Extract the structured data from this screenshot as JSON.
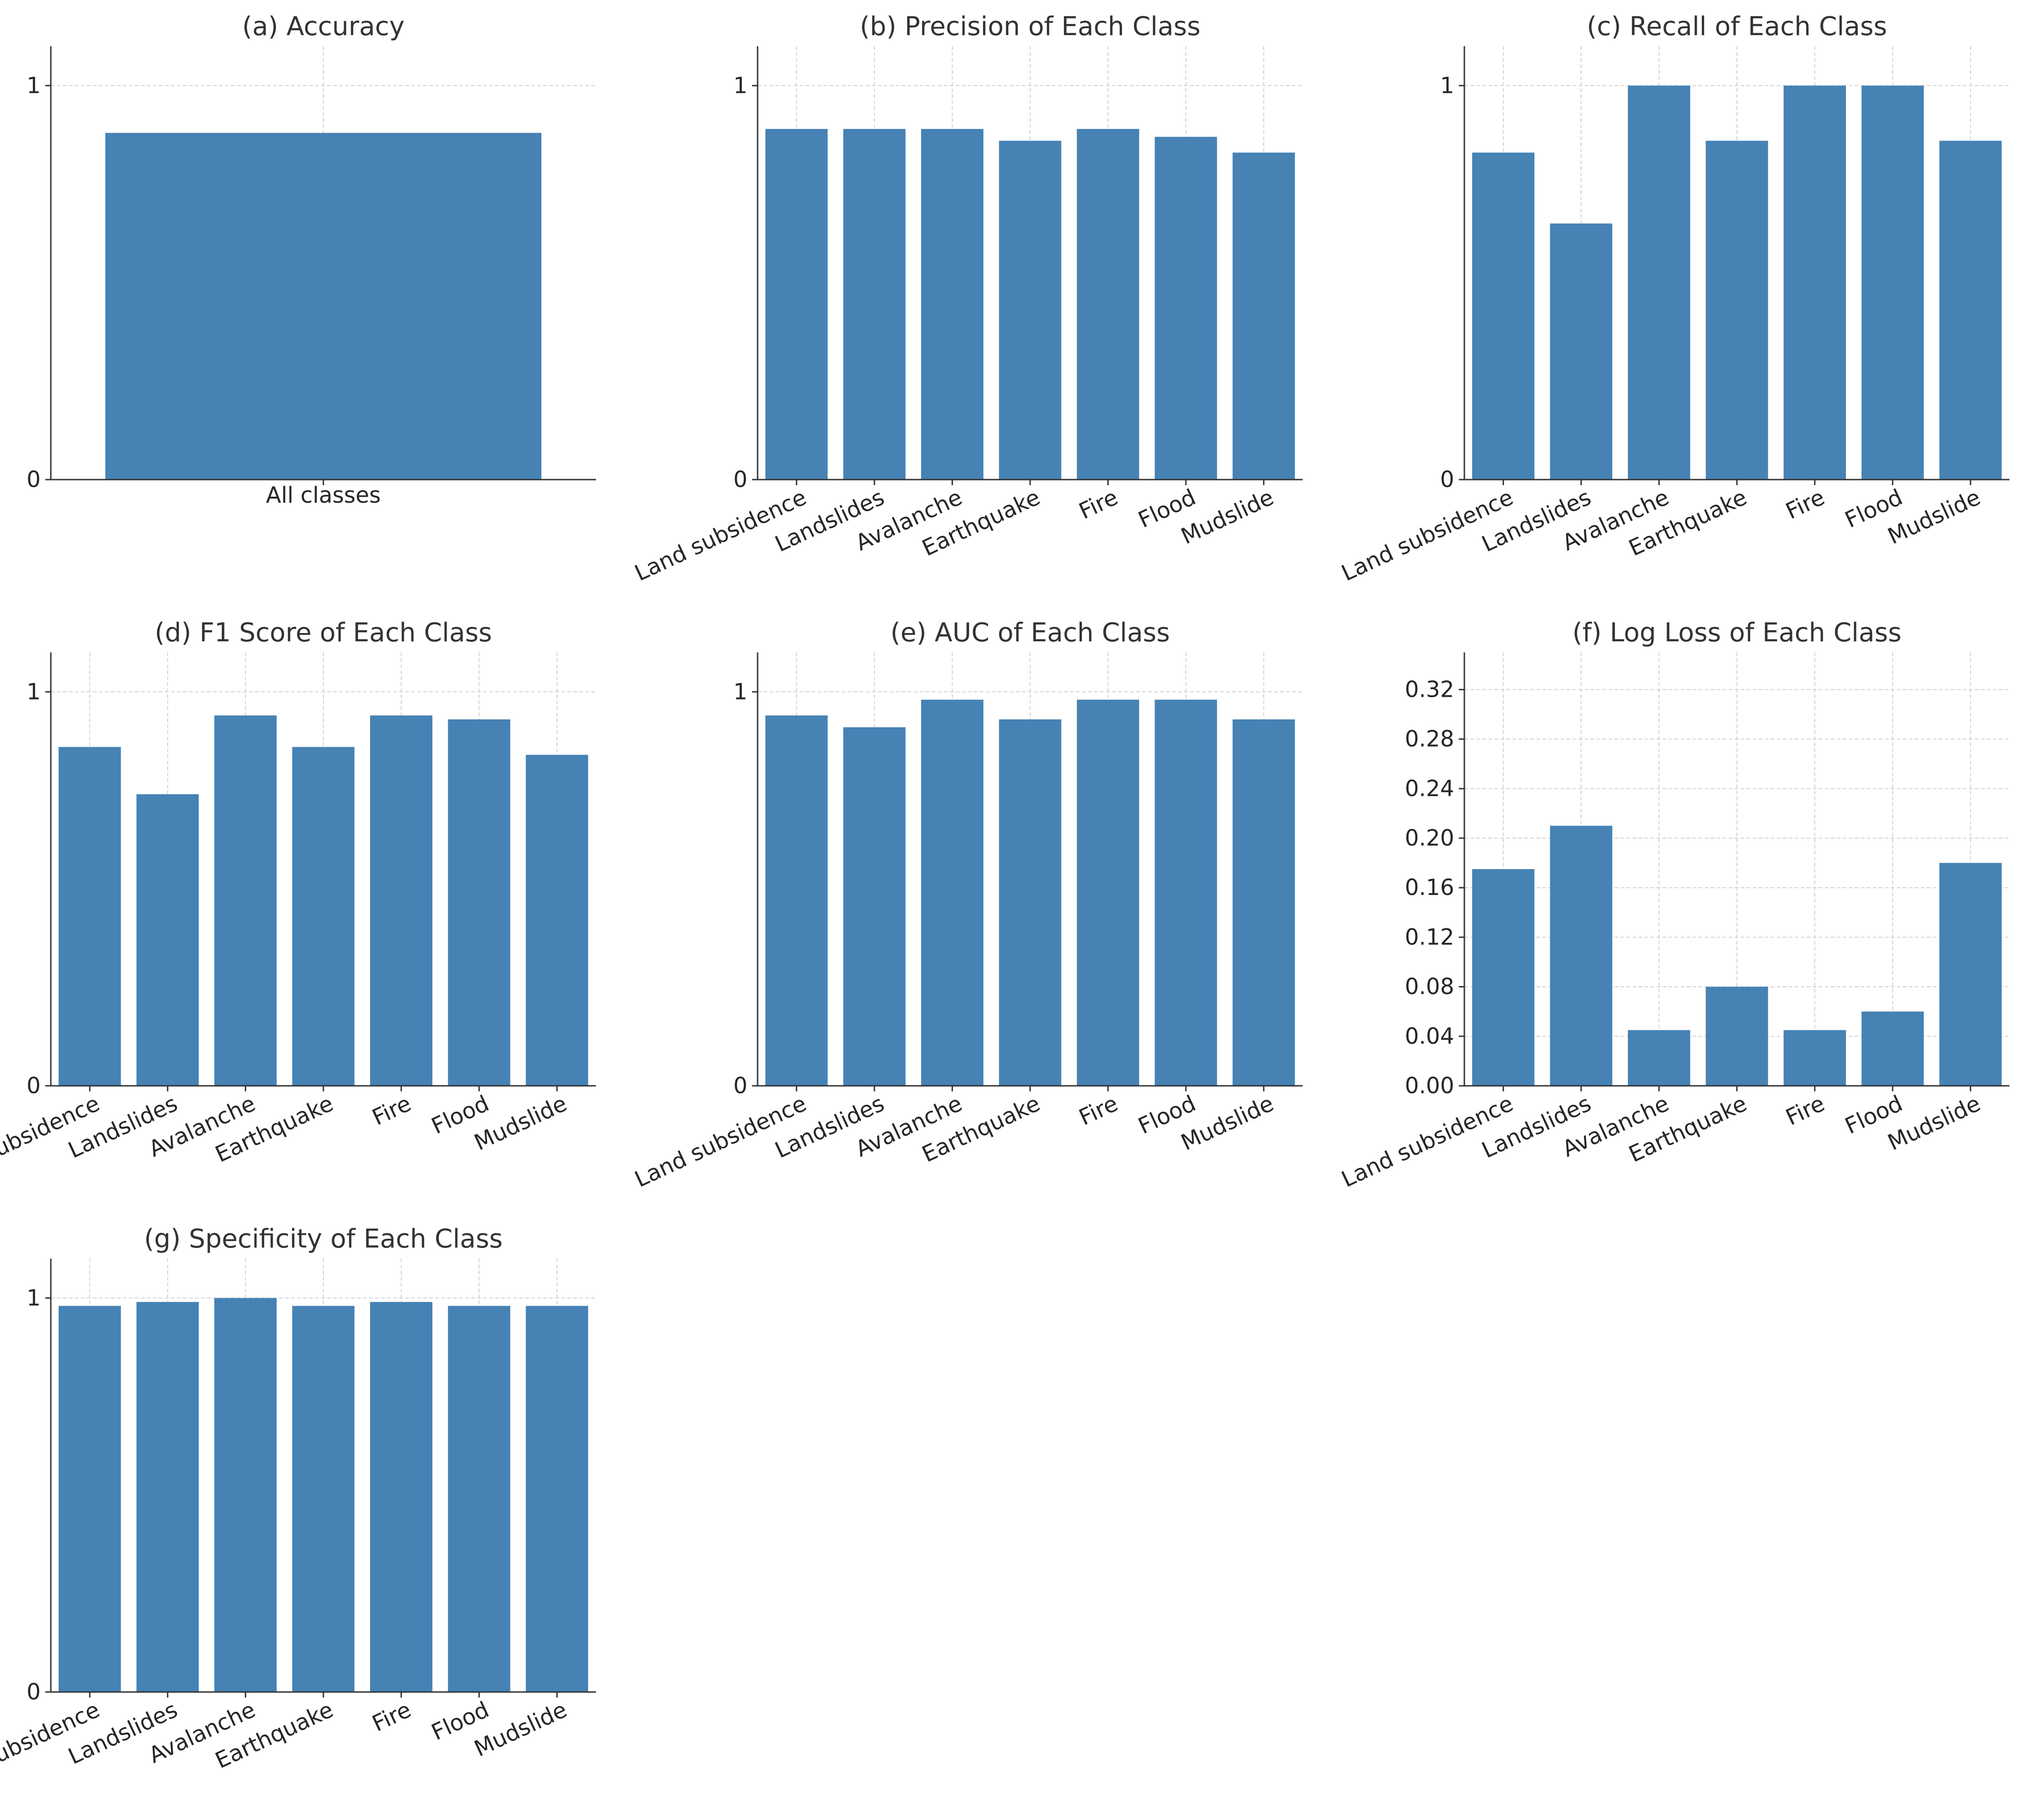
{
  "chart_data": [
    {
      "type": "bar",
      "title": "(a) Accuracy",
      "categories": [
        "All classes"
      ],
      "values": [
        0.88
      ],
      "ylim": [
        0,
        1.1
      ],
      "yticks": [
        0,
        1
      ],
      "ytick_labels": [
        "0",
        "1"
      ],
      "xlabel": "",
      "ylabel": "",
      "grid": true,
      "rotate_xticks": false
    },
    {
      "type": "bar",
      "title": "(b) Precision of Each Class",
      "categories": [
        "Land subsidence",
        "Landslides",
        "Avalanche",
        "Earthquake",
        "Fire",
        "Flood",
        "Mudslide"
      ],
      "values": [
        0.89,
        0.89,
        0.89,
        0.86,
        0.89,
        0.87,
        0.83
      ],
      "ylim": [
        0,
        1.1
      ],
      "yticks": [
        0,
        1
      ],
      "ytick_labels": [
        "0",
        "1"
      ],
      "xlabel": "",
      "ylabel": "",
      "grid": true,
      "rotate_xticks": true
    },
    {
      "type": "bar",
      "title": "(c) Recall of Each Class",
      "categories": [
        "Land subsidence",
        "Landslides",
        "Avalanche",
        "Earthquake",
        "Fire",
        "Flood",
        "Mudslide"
      ],
      "values": [
        0.83,
        0.65,
        1.0,
        0.86,
        1.0,
        1.0,
        0.86
      ],
      "ylim": [
        0,
        1.1
      ],
      "yticks": [
        0,
        1
      ],
      "ytick_labels": [
        "0",
        "1"
      ],
      "xlabel": "",
      "ylabel": "",
      "grid": true,
      "rotate_xticks": true
    },
    {
      "type": "bar",
      "title": "(d) F1 Score of Each Class",
      "categories": [
        "Land subsidence",
        "Landslides",
        "Avalanche",
        "Earthquake",
        "Fire",
        "Flood",
        "Mudslide"
      ],
      "values": [
        0.86,
        0.74,
        0.94,
        0.86,
        0.94,
        0.93,
        0.84
      ],
      "ylim": [
        0,
        1.1
      ],
      "yticks": [
        0,
        1
      ],
      "ytick_labels": [
        "0",
        "1"
      ],
      "xlabel": "",
      "ylabel": "",
      "grid": true,
      "rotate_xticks": true
    },
    {
      "type": "bar",
      "title": "(e) AUC of Each Class",
      "categories": [
        "Land subsidence",
        "Landslides",
        "Avalanche",
        "Earthquake",
        "Fire",
        "Flood",
        "Mudslide"
      ],
      "values": [
        0.94,
        0.91,
        0.98,
        0.93,
        0.98,
        0.98,
        0.93
      ],
      "ylim": [
        0,
        1.1
      ],
      "yticks": [
        0,
        1
      ],
      "ytick_labels": [
        "0",
        "1"
      ],
      "xlabel": "",
      "ylabel": "",
      "grid": true,
      "rotate_xticks": true
    },
    {
      "type": "bar",
      "title": "(f) Log Loss of Each Class",
      "categories": [
        "Land subsidence",
        "Landslides",
        "Avalanche",
        "Earthquake",
        "Fire",
        "Flood",
        "Mudslide"
      ],
      "values": [
        0.175,
        0.21,
        0.045,
        0.08,
        0.045,
        0.06,
        0.18
      ],
      "ylim": [
        0,
        0.35
      ],
      "yticks": [
        0,
        0.04,
        0.08,
        0.12,
        0.16,
        0.2,
        0.24,
        0.28,
        0.32
      ],
      "ytick_labels": [
        "0.00",
        "0.04",
        "0.08",
        "0.12",
        "0.16",
        "0.20",
        "0.24",
        "0.28",
        "0.32"
      ],
      "xlabel": "",
      "ylabel": "",
      "grid": true,
      "rotate_xticks": true
    },
    {
      "type": "bar",
      "title": "(g) Specificity of Each Class",
      "categories": [
        "Land subsidence",
        "Landslides",
        "Avalanche",
        "Earthquake",
        "Fire",
        "Flood",
        "Mudslide"
      ],
      "values": [
        0.98,
        0.99,
        1.0,
        0.98,
        0.99,
        0.98,
        0.98
      ],
      "ylim": [
        0,
        1.1
      ],
      "yticks": [
        0,
        1
      ],
      "ytick_labels": [
        "0",
        "1"
      ],
      "xlabel": "",
      "ylabel": "",
      "grid": true,
      "rotate_xticks": true
    }
  ],
  "colors": {
    "bar": "#4682b4",
    "axis": "#333333",
    "grid": "#d2d2d2",
    "text": "#333333"
  }
}
